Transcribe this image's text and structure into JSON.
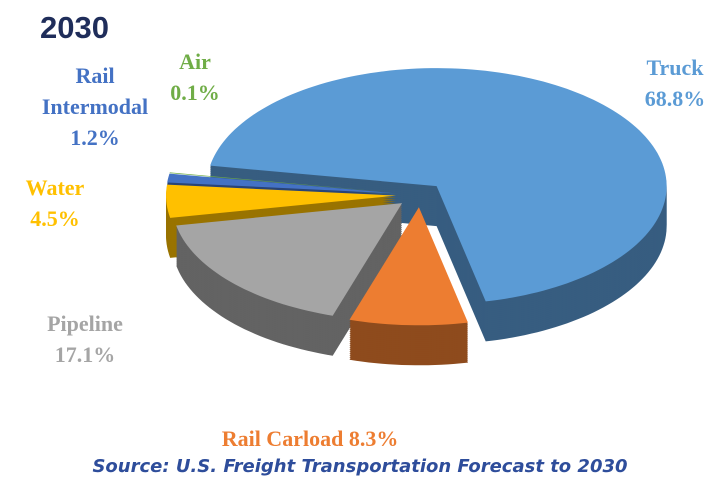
{
  "chart_data": {
    "type": "pie",
    "title": "2030",
    "source": "Source: U.S. Freight Transportation Forecast to 2030",
    "categories": [
      "Truck",
      "Rail Carload",
      "Pipeline",
      "Water",
      "Rail Intermodal",
      "Air"
    ],
    "values": [
      68.8,
      8.3,
      17.1,
      4.5,
      1.2,
      0.1
    ],
    "value_labels": [
      "68.8%",
      "8.3%",
      "17.1%",
      "4.5%",
      "1.2%",
      "0.1%"
    ],
    "colors": [
      "#5b9bd5",
      "#ed7d31",
      "#a5a5a5",
      "#ffc000",
      "#4472c4",
      "#70ad47"
    ]
  }
}
